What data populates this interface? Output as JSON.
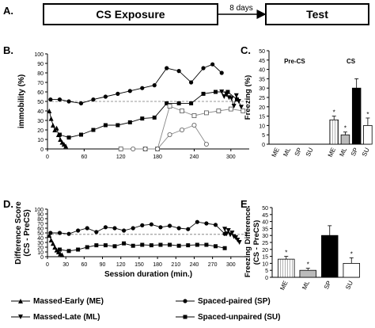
{
  "panel_letters": {
    "a": "A.",
    "b": "B.",
    "c": "C.",
    "d": "D.",
    "e": "E."
  },
  "timeline": {
    "box1": "CS Exposure",
    "arrow": "8 days",
    "box2": "Test"
  },
  "legend": [
    {
      "marker": "triangle-up",
      "label": "Massed-Early (ME)"
    },
    {
      "marker": "triangle-down",
      "label": "Massed-Late (ML)"
    },
    {
      "marker": "circle",
      "label": "Spaced-paired (SP)"
    },
    {
      "marker": "square",
      "label": "Spaced-unpaired (SU)"
    }
  ],
  "chart_data": [
    {
      "id": "B",
      "type": "line",
      "ylabel": "immobility (%)",
      "xlabel": "",
      "xlim": [
        0,
        330
      ],
      "ylim": [
        0,
        100
      ],
      "xticks": [
        0,
        60,
        120,
        180,
        240,
        300
      ],
      "yticks": [
        0,
        10,
        20,
        30,
        40,
        50,
        60,
        70,
        80,
        90,
        100
      ],
      "reference_line": 50,
      "series": [
        {
          "name": "Spaced-paired (SP)",
          "marker": "circle-filled",
          "x": [
            5,
            20,
            35,
            55,
            75,
            95,
            115,
            135,
            155,
            175,
            195,
            215,
            235,
            255,
            270,
            285
          ],
          "y": [
            52,
            52,
            50,
            48,
            52,
            55,
            58,
            61,
            64,
            67,
            85,
            82,
            70,
            85,
            89,
            80
          ]
        },
        {
          "name": "Spaced-unpaired (SU)",
          "marker": "square-filled",
          "x": [
            20,
            35,
            55,
            75,
            95,
            115,
            135,
            155,
            175,
            195,
            215,
            235,
            255,
            275,
            295,
            310
          ],
          "y": [
            15,
            12,
            15,
            20,
            25,
            25,
            28,
            32,
            33,
            48,
            48,
            48,
            58,
            60,
            60,
            52
          ]
        },
        {
          "name": "Massed-Early (ME)",
          "marker": "triangle-up",
          "x": [
            3,
            6,
            9,
            12,
            15,
            18,
            21,
            24,
            27,
            30
          ],
          "y": [
            40,
            32,
            25,
            20,
            22,
            15,
            10,
            7,
            5,
            3
          ]
        },
        {
          "name": "Massed-Late (ML)",
          "marker": "triangle-down",
          "x": [
            285,
            289,
            293,
            297,
            301,
            305,
            309,
            313,
            317
          ],
          "y": [
            60,
            55,
            57,
            54,
            53,
            45,
            56,
            50,
            44
          ]
        },
        {
          "name": "Unpaired open squares",
          "marker": "square-open",
          "x": [
            120,
            160,
            180,
            200,
            220,
            240,
            260,
            280,
            300,
            320
          ],
          "y": [
            0,
            0,
            0,
            45,
            40,
            35,
            38,
            40,
            42,
            40
          ]
        },
        {
          "name": "Paired open circles",
          "marker": "circle-open",
          "x": [
            140,
            160,
            180,
            200,
            220,
            240,
            260
          ],
          "y": [
            0,
            0,
            0,
            15,
            20,
            25,
            5
          ]
        }
      ]
    },
    {
      "id": "C",
      "type": "bar",
      "ylabel": "Freezing (%)",
      "ylim": [
        0,
        50
      ],
      "yticks": [
        0,
        5,
        10,
        15,
        20,
        25,
        30,
        35,
        40,
        45,
        50
      ],
      "group_labels": [
        "Pre-CS",
        "CS"
      ],
      "categories": [
        "ME",
        "ML",
        "SP",
        "SU",
        "ME",
        "ML",
        "SP",
        "SU"
      ],
      "values": [
        0,
        0,
        0,
        0,
        13,
        5,
        30,
        10
      ],
      "errors": [
        0,
        0,
        0,
        0,
        2,
        1.5,
        5,
        4
      ],
      "fills": [
        "hatch",
        "gray",
        "black",
        "white",
        "hatch",
        "gray",
        "black",
        "white"
      ],
      "significance": [
        "",
        "",
        "",
        "",
        "*",
        "*",
        "",
        "*"
      ]
    },
    {
      "id": "D",
      "type": "line",
      "ylabel": "Difference Score (CS - PreCS)",
      "xlabel": "Session duration (min.)",
      "xlim": [
        0,
        330
      ],
      "ylim": [
        0,
        100
      ],
      "xticks": [
        0,
        30,
        60,
        90,
        120,
        150,
        180,
        210,
        240,
        270,
        300
      ],
      "yticks": [
        0,
        10,
        20,
        30,
        40,
        50,
        60,
        70,
        80,
        90,
        100
      ],
      "reference_line": 47,
      "series": [
        {
          "name": "Spaced-paired (SP)",
          "marker": "circle-filled",
          "x": [
            5,
            20,
            35,
            50,
            65,
            80,
            95,
            110,
            125,
            140,
            155,
            170,
            185,
            200,
            215,
            230,
            245,
            260,
            275,
            290
          ],
          "y": [
            50,
            50,
            48,
            55,
            60,
            52,
            62,
            60,
            55,
            60,
            66,
            68,
            62,
            65,
            60,
            58,
            73,
            70,
            67,
            48
          ]
        },
        {
          "name": "Spaced-unpaired (SU)",
          "marker": "square-filled",
          "x": [
            20,
            35,
            50,
            65,
            80,
            95,
            110,
            125,
            140,
            155,
            170,
            185,
            200,
            215,
            230,
            245,
            260,
            275,
            290
          ],
          "y": [
            15,
            12,
            15,
            20,
            24,
            24,
            22,
            28,
            23,
            25,
            24,
            25,
            25,
            23,
            24,
            25,
            25,
            22,
            18
          ]
        },
        {
          "name": "Massed-Early (ME)",
          "marker": "triangle-up",
          "x": [
            3,
            6,
            9,
            12,
            15,
            18,
            21,
            24
          ],
          "y": [
            45,
            35,
            28,
            20,
            14,
            10,
            6,
            4
          ]
        },
        {
          "name": "Massed-Late (ML)",
          "marker": "triangle-down",
          "x": [
            290,
            293,
            296,
            299,
            302,
            305,
            308,
            311,
            314
          ],
          "y": [
            58,
            48,
            55,
            46,
            50,
            42,
            40,
            35,
            30
          ]
        }
      ]
    },
    {
      "id": "E",
      "type": "bar",
      "ylabel": "Freezing Difference (CS - PreCS)",
      "ylim": [
        0,
        50
      ],
      "yticks": [
        0,
        5,
        10,
        15,
        20,
        25,
        30,
        35,
        40,
        45,
        50
      ],
      "categories": [
        "ME",
        "ML",
        "SP",
        "SU"
      ],
      "values": [
        13,
        5,
        30,
        10
      ],
      "errors": [
        2,
        1.5,
        7,
        4
      ],
      "fills": [
        "hatch",
        "gray",
        "black",
        "white"
      ],
      "significance": [
        "*",
        "*",
        "",
        "*"
      ]
    }
  ]
}
